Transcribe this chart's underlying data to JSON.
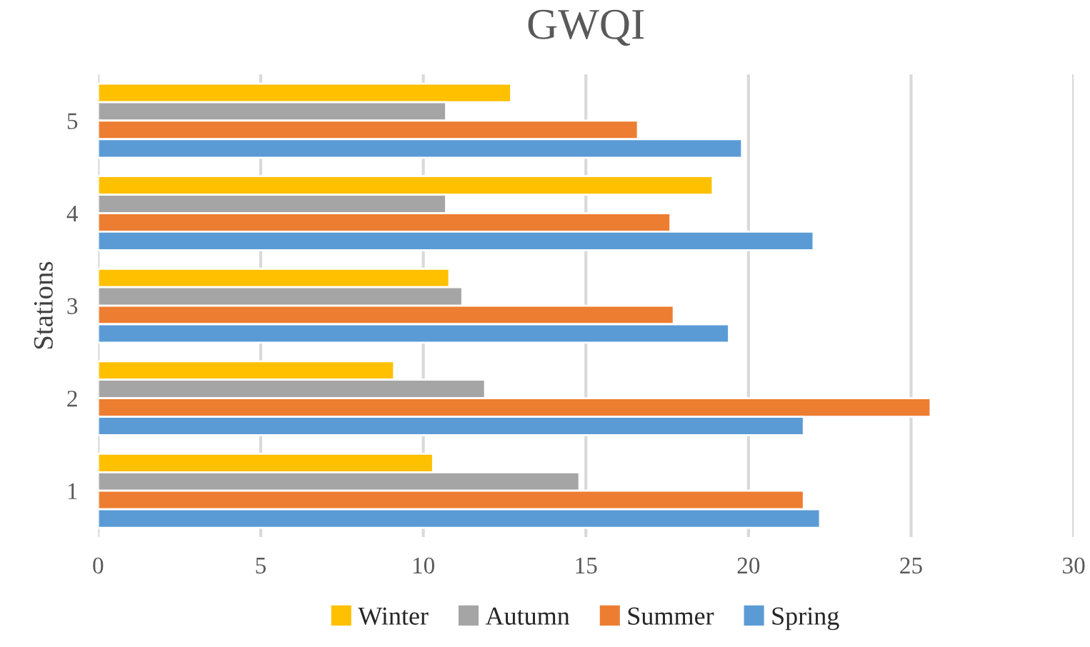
{
  "chart_data": {
    "type": "bar",
    "orientation": "horizontal",
    "title": "GWQI",
    "ylabel": "Stations",
    "categories": [
      "5",
      "4",
      "3",
      "2",
      "1"
    ],
    "series": [
      {
        "name": "Winter",
        "color": "#ffc000",
        "values": [
          12.7,
          18.9,
          10.8,
          9.1,
          10.3
        ]
      },
      {
        "name": "Autumn",
        "color": "#a5a5a5",
        "values": [
          10.7,
          10.7,
          11.2,
          11.9,
          14.8
        ]
      },
      {
        "name": "Summer",
        "color": "#ed7d31",
        "values": [
          16.6,
          17.6,
          17.7,
          25.6,
          21.7
        ]
      },
      {
        "name": "Spring",
        "color": "#5b9bd5",
        "values": [
          19.8,
          22.0,
          19.4,
          21.7,
          22.2
        ]
      }
    ],
    "xlim": [
      0,
      30
    ],
    "xticks": [
      0,
      5,
      10,
      15,
      20,
      25,
      30
    ],
    "grid": "x",
    "legend": "bottom"
  }
}
